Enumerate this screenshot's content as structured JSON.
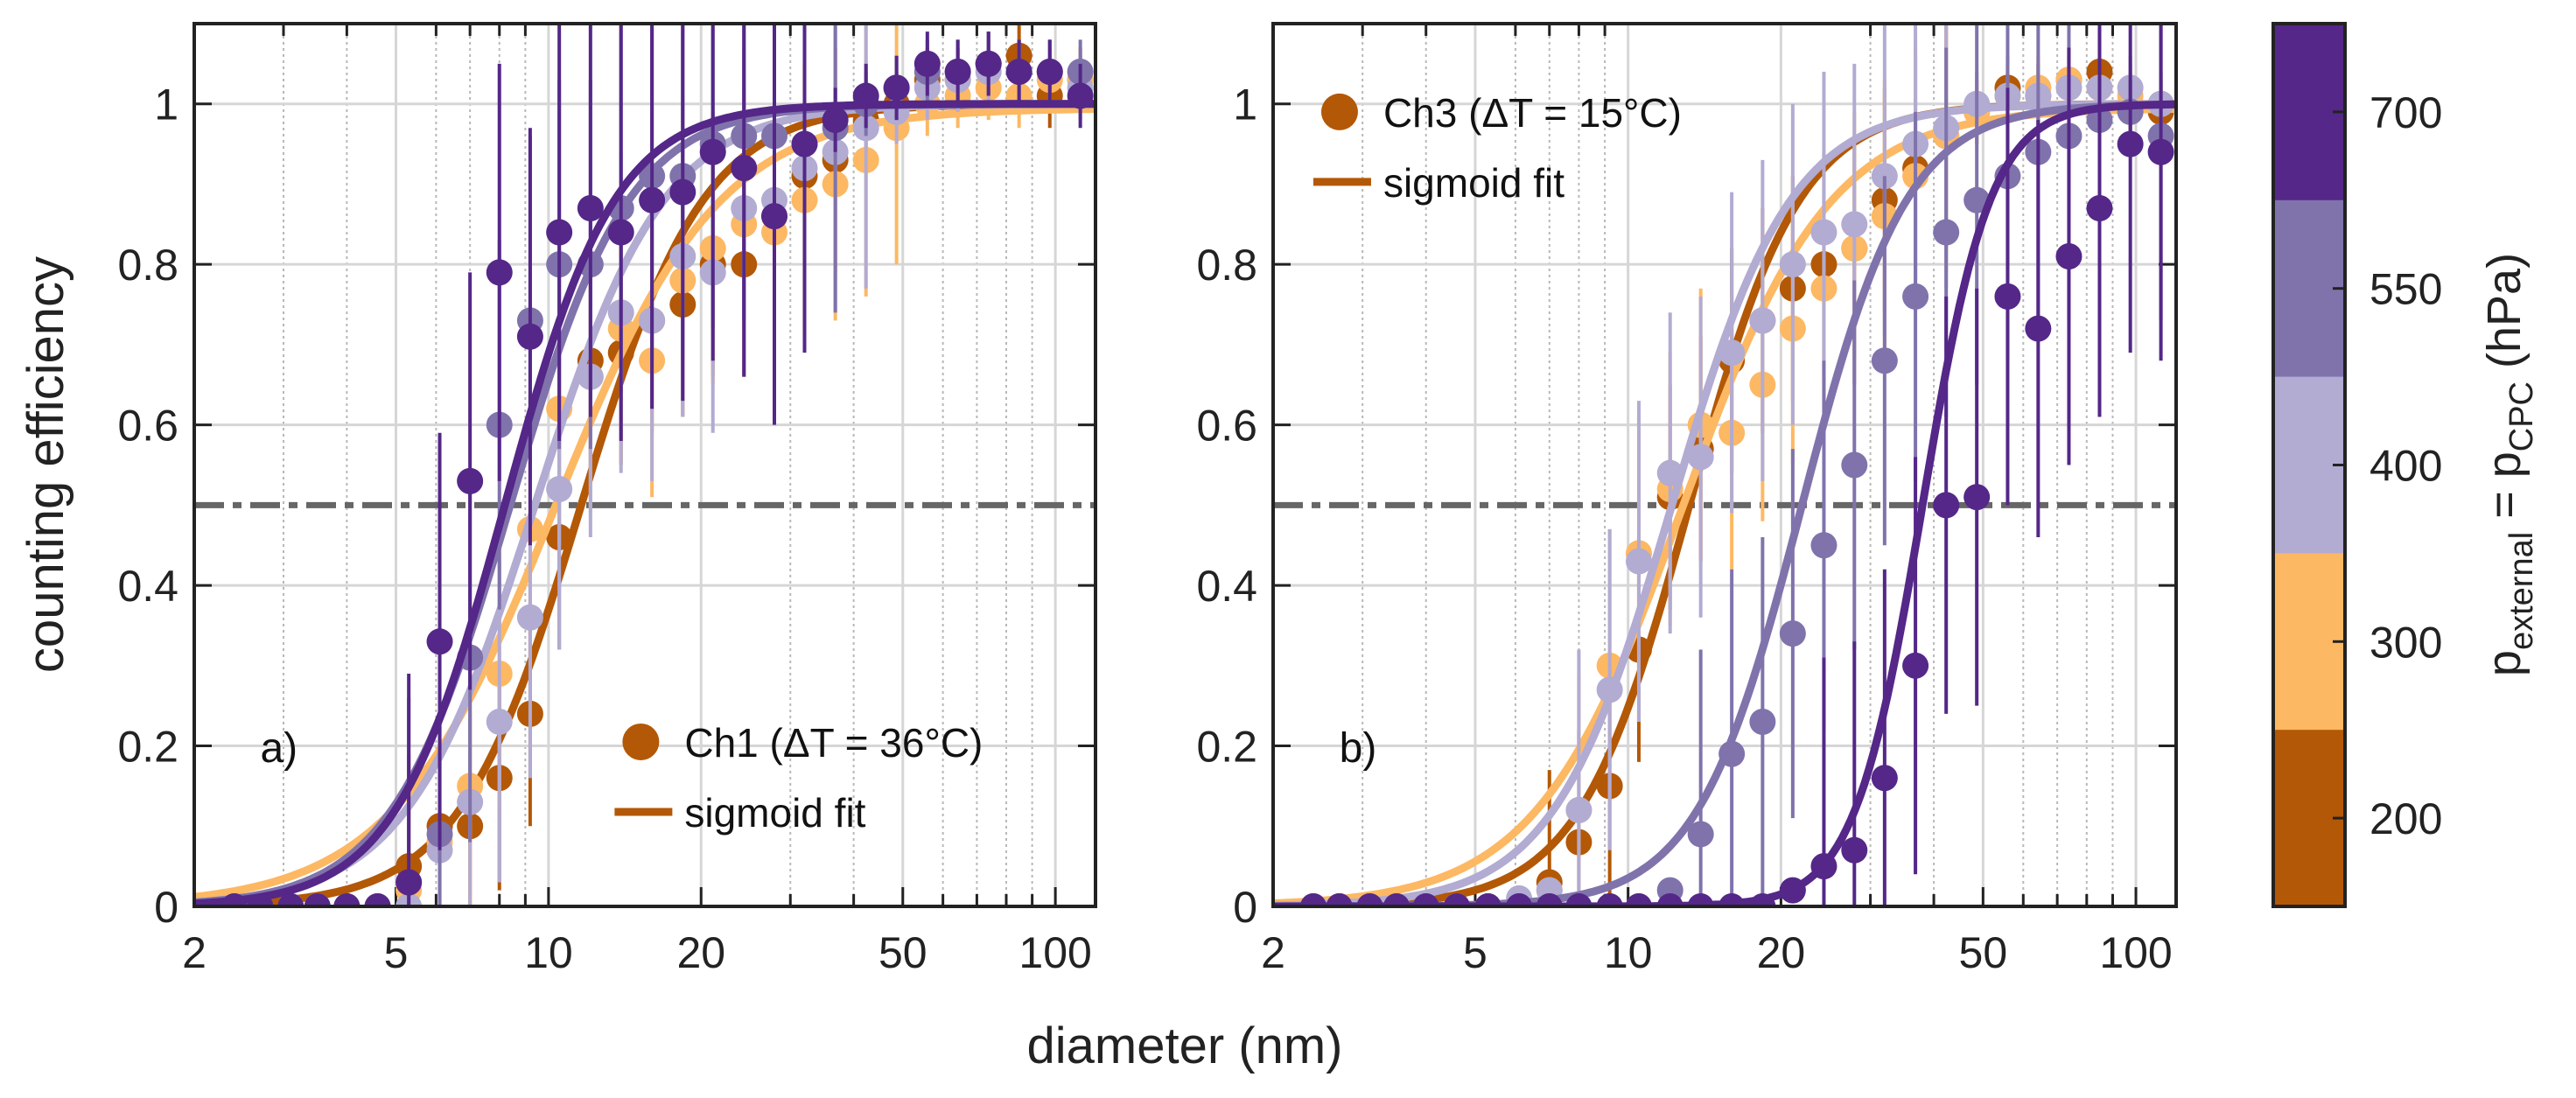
{
  "chart_data": [
    {
      "type": "scatter",
      "panel_label": "a)",
      "xlabel": "diameter (nm)",
      "ylabel": "counting efficiency",
      "xscale": "log",
      "xlim": [
        2,
        120
      ],
      "ylim": [
        0,
        1.1
      ],
      "xticks": [
        2,
        5,
        10,
        20,
        50,
        100
      ],
      "xtick_labels": [
        "2",
        "5",
        "10",
        "20",
        "50",
        "100"
      ],
      "yticks": [
        0,
        0.2,
        0.4,
        0.6,
        0.8,
        1
      ],
      "ytick_labels": [
        "0",
        "0.2",
        "0.4",
        "0.6",
        "0.8",
        "1"
      ],
      "grid": true,
      "reference_line": {
        "y": 0.5,
        "style": "dash-dot",
        "color": "#666666"
      },
      "legend": {
        "position": "bottom-right",
        "marker_label": "Ch1 (ΔT = 36°C)",
        "line_label": "sigmoid fit",
        "color": "#b35806"
      },
      "series": [
        {
          "name": "200 hPa",
          "color": "#b35806",
          "fit": {
            "d50": 11.6,
            "slope": 3.6,
            "max": 1.0
          },
          "x": [
            2.4,
            2.7,
            3.1,
            3.5,
            4.0,
            4.6,
            5.3,
            6.1,
            7.0,
            8.0,
            9.2,
            10.5,
            12.1,
            13.9,
            16.0,
            18.4,
            21.1,
            24.3,
            27.9,
            32.0,
            36.8,
            42.3,
            48.6,
            55.9,
            64.2,
            73.8,
            84.8,
            97.5,
            112
          ],
          "y": [
            0,
            0,
            0,
            0,
            0,
            0,
            0.05,
            0.1,
            0.1,
            0.16,
            0.24,
            0.46,
            0.68,
            0.69,
            0.73,
            0.75,
            0.8,
            0.8,
            0.86,
            0.91,
            0.93,
            0.98,
            1.0,
            1.03,
            1.03,
            1.05,
            1.06,
            1.01,
            1.03
          ]
        },
        {
          "name": "300 hPa",
          "color": "#fdb863",
          "fit": {
            "d50": 10.3,
            "slope": 2.7,
            "max": 0.995
          },
          "x": [
            2.4,
            2.7,
            3.1,
            3.5,
            4.0,
            4.6,
            5.3,
            6.1,
            7.0,
            8.0,
            9.2,
            10.5,
            12.1,
            13.9,
            16.0,
            18.4,
            21.1,
            24.3,
            27.9,
            32.0,
            36.8,
            42.3,
            48.6,
            55.9,
            64.2,
            73.8,
            84.8,
            97.5,
            112
          ],
          "y": [
            0,
            0,
            0,
            0,
            0,
            0,
            0.02,
            0.08,
            0.15,
            0.29,
            0.47,
            0.62,
            0.66,
            0.72,
            0.68,
            0.78,
            0.82,
            0.85,
            0.84,
            0.88,
            0.9,
            0.93,
            0.97,
            1.0,
            1.01,
            1.02,
            1.01,
            1.03,
            1.03
          ]
        },
        {
          "name": "400 hPa",
          "color": "#b2abd2",
          "fit": {
            "d50": 9.4,
            "slope": 3.4,
            "max": 1.0
          },
          "x": [
            2.4,
            2.7,
            3.1,
            3.5,
            4.0,
            4.6,
            5.3,
            6.1,
            7.0,
            8.0,
            9.2,
            10.5,
            12.1,
            13.9,
            16.0,
            18.4,
            21.1,
            24.3,
            27.9,
            32.0,
            36.8,
            42.3,
            48.6,
            55.9,
            64.2,
            73.8,
            84.8,
            97.5,
            112
          ],
          "y": [
            0,
            0,
            0,
            0,
            0,
            0,
            0,
            0.07,
            0.13,
            0.23,
            0.36,
            0.52,
            0.66,
            0.74,
            0.73,
            0.81,
            0.79,
            0.87,
            0.88,
            0.92,
            0.94,
            0.97,
            0.99,
            1.02,
            1.03,
            1.04,
            1.04,
            1.04,
            1.02
          ]
        },
        {
          "name": "550 hPa",
          "color": "#8073ac",
          "fit": {
            "d50": 8.4,
            "slope": 3.7,
            "max": 1.0
          },
          "x": [
            2.4,
            2.7,
            3.1,
            3.5,
            4.0,
            4.6,
            5.3,
            6.1,
            7.0,
            8.0,
            9.2,
            10.5,
            12.1,
            13.9,
            16.0,
            18.4,
            21.1,
            24.3,
            27.9,
            32.0,
            36.8,
            42.3,
            48.6,
            55.9,
            64.2,
            73.8,
            84.8,
            97.5,
            112
          ],
          "y": [
            0,
            0,
            0,
            0,
            0,
            0,
            0.03,
            0.09,
            0.31,
            0.6,
            0.73,
            0.8,
            0.8,
            0.87,
            0.91,
            0.91,
            0.95,
            0.96,
            0.96,
            0.95,
            0.97,
            1.0,
            1.02,
            1.04,
            1.04,
            1.05,
            1.04,
            1.04,
            1.04
          ]
        },
        {
          "name": "700 hPa",
          "color": "#542788",
          "fit": {
            "d50": 8.2,
            "slope": 4.0,
            "max": 1.0
          },
          "x": [
            2.4,
            2.7,
            3.1,
            3.5,
            4.0,
            4.6,
            5.3,
            6.1,
            7.0,
            8.0,
            9.2,
            10.5,
            12.1,
            13.9,
            16.0,
            18.4,
            21.1,
            24.3,
            27.9,
            32.0,
            36.8,
            42.3,
            48.6,
            55.9,
            64.2,
            73.8,
            84.8,
            97.5,
            112
          ],
          "y": [
            0,
            0,
            0,
            0,
            0,
            0,
            0.03,
            0.33,
            0.53,
            0.79,
            0.71,
            0.84,
            0.87,
            0.84,
            0.88,
            0.89,
            0.94,
            0.92,
            0.86,
            0.95,
            0.98,
            1.01,
            1.02,
            1.05,
            1.04,
            1.05,
            1.04,
            1.04,
            1.01
          ]
        }
      ]
    },
    {
      "type": "scatter",
      "panel_label": "b)",
      "xlabel": "diameter (nm)",
      "ylabel": "",
      "xscale": "log",
      "xlim": [
        2,
        120
      ],
      "ylim": [
        0,
        1.1
      ],
      "xticks": [
        2,
        5,
        10,
        20,
        50,
        100
      ],
      "xtick_labels": [
        "2",
        "5",
        "10",
        "20",
        "50",
        "100"
      ],
      "yticks": [
        0,
        0.2,
        0.4,
        0.6,
        0.8,
        1
      ],
      "ytick_labels": [
        "0",
        "0.2",
        "0.4",
        "0.6",
        "0.8",
        "1"
      ],
      "grid": true,
      "reference_line": {
        "y": 0.5,
        "style": "dash-dot",
        "color": "#666666"
      },
      "legend": {
        "position": "top-left",
        "marker_label": "Ch3 (ΔT = 15°C)",
        "line_label": "sigmoid fit",
        "color": "#b35806"
      },
      "series": [
        {
          "name": "200 hPa",
          "color": "#b35806",
          "fit": {
            "d50": 13.2,
            "slope": 4.0,
            "max": 1.0
          },
          "x": [
            2.4,
            2.7,
            3.1,
            3.5,
            4.0,
            4.6,
            5.3,
            6.1,
            7.0,
            8.0,
            9.2,
            10.5,
            12.1,
            13.9,
            16.0,
            18.4,
            21.1,
            24.3,
            27.9,
            32.0,
            36.8,
            42.3,
            48.6,
            55.9,
            64.2,
            73.8,
            84.8,
            97.5,
            112
          ],
          "y": [
            0,
            0,
            0,
            0,
            0,
            0,
            0,
            0,
            0.03,
            0.08,
            0.15,
            0.32,
            0.51,
            0.57,
            0.68,
            0.73,
            0.77,
            0.8,
            0.82,
            0.88,
            0.92,
            0.96,
            0.99,
            1.02,
            1.01,
            1.03,
            1.04,
            1.0,
            0.99
          ]
        },
        {
          "name": "300 hPa",
          "color": "#fdb863",
          "fit": {
            "d50": 12.8,
            "slope": 3.0,
            "max": 0.995
          },
          "x": [
            2.4,
            2.7,
            3.1,
            3.5,
            4.0,
            4.6,
            5.3,
            6.1,
            7.0,
            8.0,
            9.2,
            10.5,
            12.1,
            13.9,
            16.0,
            18.4,
            21.1,
            24.3,
            27.9,
            32.0,
            36.8,
            42.3,
            48.6,
            55.9,
            64.2,
            73.8,
            84.8,
            97.5,
            112
          ],
          "y": [
            0,
            0,
            0,
            0,
            0,
            0,
            0,
            0,
            0.02,
            0.12,
            0.3,
            0.44,
            0.52,
            0.6,
            0.59,
            0.65,
            0.72,
            0.77,
            0.82,
            0.86,
            0.91,
            0.96,
            0.99,
            1.01,
            1.02,
            1.03,
            1.02,
            1.01,
            1.0
          ]
        },
        {
          "name": "400 hPa",
          "color": "#b2abd2",
          "fit": {
            "d50": 12.2,
            "slope": 3.7,
            "max": 1.0
          },
          "x": [
            2.4,
            2.7,
            3.1,
            3.5,
            4.0,
            4.6,
            5.3,
            6.1,
            7.0,
            8.0,
            9.2,
            10.5,
            12.1,
            13.9,
            16.0,
            18.4,
            21.1,
            24.3,
            27.9,
            32.0,
            36.8,
            42.3,
            48.6,
            55.9,
            64.2,
            73.8,
            84.8,
            97.5,
            112
          ],
          "y": [
            0,
            0,
            0,
            0,
            0,
            0,
            0,
            0.01,
            0.02,
            0.12,
            0.27,
            0.43,
            0.54,
            0.56,
            0.69,
            0.73,
            0.8,
            0.84,
            0.85,
            0.91,
            0.95,
            0.97,
            1.0,
            1.01,
            1.01,
            1.02,
            1.02,
            1.02,
            1.0
          ]
        },
        {
          "name": "550 hPa",
          "color": "#8073ac",
          "fit": {
            "d50": 22.0,
            "slope": 4.2,
            "max": 1.0
          },
          "x": [
            2.4,
            2.7,
            3.1,
            3.5,
            4.0,
            4.6,
            5.3,
            6.1,
            7.0,
            8.0,
            9.2,
            10.5,
            12.1,
            13.9,
            16.0,
            18.4,
            21.1,
            24.3,
            27.9,
            32.0,
            36.8,
            42.3,
            48.6,
            55.9,
            64.2,
            73.8,
            84.8,
            97.5,
            112
          ],
          "y": [
            0,
            0,
            0,
            0,
            0,
            0,
            0,
            0,
            0,
            0,
            0,
            0,
            0.02,
            0.09,
            0.19,
            0.23,
            0.34,
            0.45,
            0.55,
            0.68,
            0.76,
            0.84,
            0.88,
            0.91,
            0.94,
            0.96,
            0.98,
            0.99,
            0.96
          ]
        },
        {
          "name": "700 hPa",
          "color": "#542788",
          "fit": {
            "d50": 38.0,
            "slope": 6.5,
            "max": 1.0
          },
          "x": [
            2.4,
            2.7,
            3.1,
            3.5,
            4.0,
            4.6,
            5.3,
            6.1,
            7.0,
            8.0,
            9.2,
            10.5,
            12.1,
            13.9,
            16.0,
            18.4,
            21.1,
            24.3,
            27.9,
            32.0,
            36.8,
            42.3,
            48.6,
            55.9,
            64.2,
            73.8,
            84.8,
            97.5,
            112
          ],
          "y": [
            0,
            0,
            0,
            0,
            0,
            0,
            0,
            0,
            0,
            0,
            0,
            0,
            0,
            0,
            0,
            0,
            0.02,
            0.05,
            0.07,
            0.16,
            0.3,
            0.5,
            0.51,
            0.76,
            0.72,
            0.81,
            0.87,
            0.95,
            0.94
          ]
        }
      ]
    }
  ],
  "colorbar": {
    "label_main": "p",
    "label_sub1": "external",
    "label_eq": " = p",
    "label_sub2": "CPC",
    "label_unit": " (hPa)",
    "levels": [
      {
        "value": "700",
        "color": "#542788"
      },
      {
        "value": "550",
        "color": "#8073ac"
      },
      {
        "value": "400",
        "color": "#b2abd2"
      },
      {
        "value": "300",
        "color": "#fdb863"
      },
      {
        "value": "200",
        "color": "#b35806"
      }
    ]
  }
}
